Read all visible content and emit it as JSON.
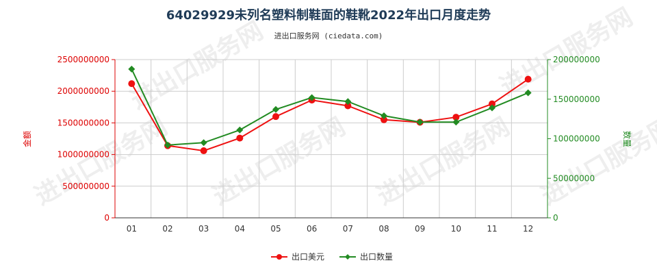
{
  "title": "64029929未列名塑料制鞋面的鞋靴2022年出口月度走势",
  "subtitle": "进出口服务网 (ciedata.com)",
  "watermark": "进出口服务网",
  "chart_data": {
    "type": "line",
    "categories": [
      "01",
      "02",
      "03",
      "04",
      "05",
      "06",
      "07",
      "08",
      "09",
      "10",
      "11",
      "12"
    ],
    "series": [
      {
        "name": "出口美元",
        "axis": "left",
        "color": "#ee1111",
        "marker": "circle",
        "values": [
          2120000000,
          1140000000,
          1060000000,
          1260000000,
          1600000000,
          1860000000,
          1770000000,
          1550000000,
          1510000000,
          1590000000,
          1800000000,
          2190000000
        ]
      },
      {
        "name": "出口数量",
        "axis": "right",
        "color": "#228b22",
        "marker": "diamond",
        "values": [
          188000000,
          92000000,
          95000000,
          111000000,
          137000000,
          152000000,
          147000000,
          129000000,
          121000000,
          121000000,
          139000000,
          158000000
        ]
      }
    ],
    "ylabel_left": "金额",
    "ylabel_right": "数量",
    "ylim_left": [
      0,
      2500000000
    ],
    "ylim_right": [
      0,
      200000000
    ],
    "yticks_left": [
      "0",
      "500000000",
      "1000000000",
      "1500000000",
      "2000000000",
      "2500000000"
    ],
    "yticks_right": [
      "0",
      "50000000",
      "100000000",
      "150000000",
      "200000000"
    ],
    "left_axis_color": "#dd0000",
    "right_axis_color": "#228b22",
    "grid": true,
    "legend_position": "bottom"
  }
}
